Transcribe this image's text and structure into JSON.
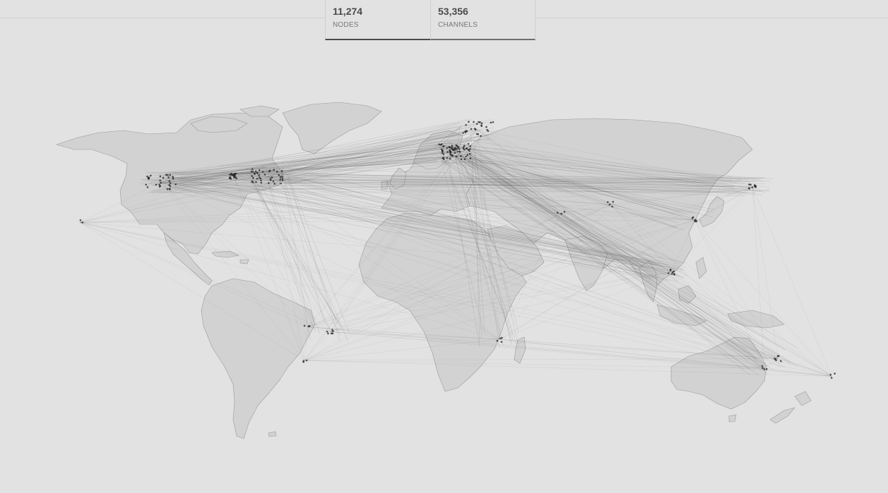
{
  "stats": {
    "nodes": {
      "value": "11,274",
      "label": "NODES"
    },
    "channels": {
      "value": "53,356",
      "label": "CHANNELS"
    }
  },
  "colors": {
    "background": "#e2e2e2",
    "land": "#d2d2d2",
    "coast": "#9a9a9a",
    "channel": "#555555",
    "node": "#222222"
  },
  "map": {
    "projection": "equirectangular",
    "hubs": [
      {
        "name": "west-coast-us",
        "lon": -122,
        "lat": 37.5
      },
      {
        "name": "east-coast-us",
        "lon": -75,
        "lat": 40
      },
      {
        "name": "central-us",
        "lon": -90,
        "lat": 40
      },
      {
        "name": "europe",
        "lon": 8,
        "lat": 50
      },
      {
        "name": "scandinavia",
        "lon": 18,
        "lat": 59
      },
      {
        "name": "japan",
        "lon": 139.7,
        "lat": 35.7
      },
      {
        "name": "singapore",
        "lon": 103.8,
        "lat": 1.3
      },
      {
        "name": "hong-kong",
        "lon": 114.2,
        "lat": 22.3
      },
      {
        "name": "south-brazil",
        "lon": -47,
        "lat": -23
      },
      {
        "name": "central-brazil",
        "lon": -57,
        "lat": -21
      },
      {
        "name": "south-africa",
        "lon": 28,
        "lat": -26
      },
      {
        "name": "sydney",
        "lon": 151,
        "lat": -33.8
      },
      {
        "name": "melbourne",
        "lon": 145,
        "lat": -37.8
      },
      {
        "name": "new-zealand",
        "lon": 174.8,
        "lat": -41
      },
      {
        "name": "argentina",
        "lon": -58.4,
        "lat": -34.6
      },
      {
        "name": "hawaii",
        "lon": -157.8,
        "lat": 21.3
      },
      {
        "name": "india",
        "lon": 77,
        "lat": 28.6
      },
      {
        "name": "uae",
        "lon": 55,
        "lat": 25
      }
    ]
  }
}
